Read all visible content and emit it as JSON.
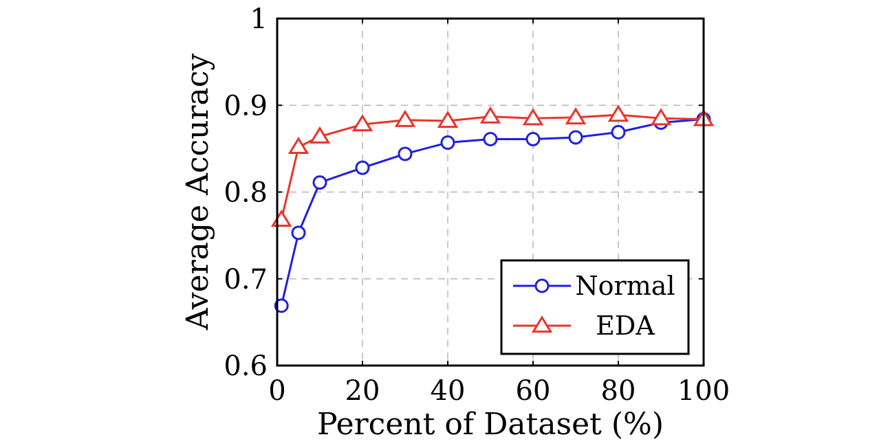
{
  "chart_data": {
    "type": "line",
    "title": "",
    "xlabel": "Percent of Dataset (%)",
    "ylabel": "Average Accuracy",
    "xlim": [
      0,
      100
    ],
    "ylim": [
      0.6,
      1.0
    ],
    "xticks": [
      0,
      20,
      40,
      60,
      80,
      100
    ],
    "xtick_labels": [
      "0",
      "20",
      "40",
      "60",
      "80",
      "100"
    ],
    "yticks": [
      0.6,
      0.7,
      0.8,
      0.9,
      1.0
    ],
    "ytick_labels": [
      "0.6",
      "0.7",
      "0.8",
      "0.9",
      "1"
    ],
    "grid": true,
    "legend_position": "bottom-right",
    "series": [
      {
        "name": "Normal",
        "color": "#1f1fe0",
        "marker": "circle",
        "x": [
          1,
          5,
          10,
          20,
          30,
          40,
          50,
          60,
          70,
          80,
          90,
          100
        ],
        "y": [
          0.669,
          0.753,
          0.811,
          0.828,
          0.844,
          0.857,
          0.861,
          0.861,
          0.863,
          0.869,
          0.88,
          0.884
        ]
      },
      {
        "name": "EDA",
        "color": "#e8352b",
        "marker": "triangle",
        "x": [
          1,
          5,
          10,
          20,
          30,
          40,
          50,
          60,
          70,
          80,
          90,
          100
        ],
        "y": [
          0.768,
          0.852,
          0.864,
          0.878,
          0.883,
          0.882,
          0.887,
          0.885,
          0.886,
          0.889,
          0.885,
          0.884
        ]
      }
    ]
  }
}
